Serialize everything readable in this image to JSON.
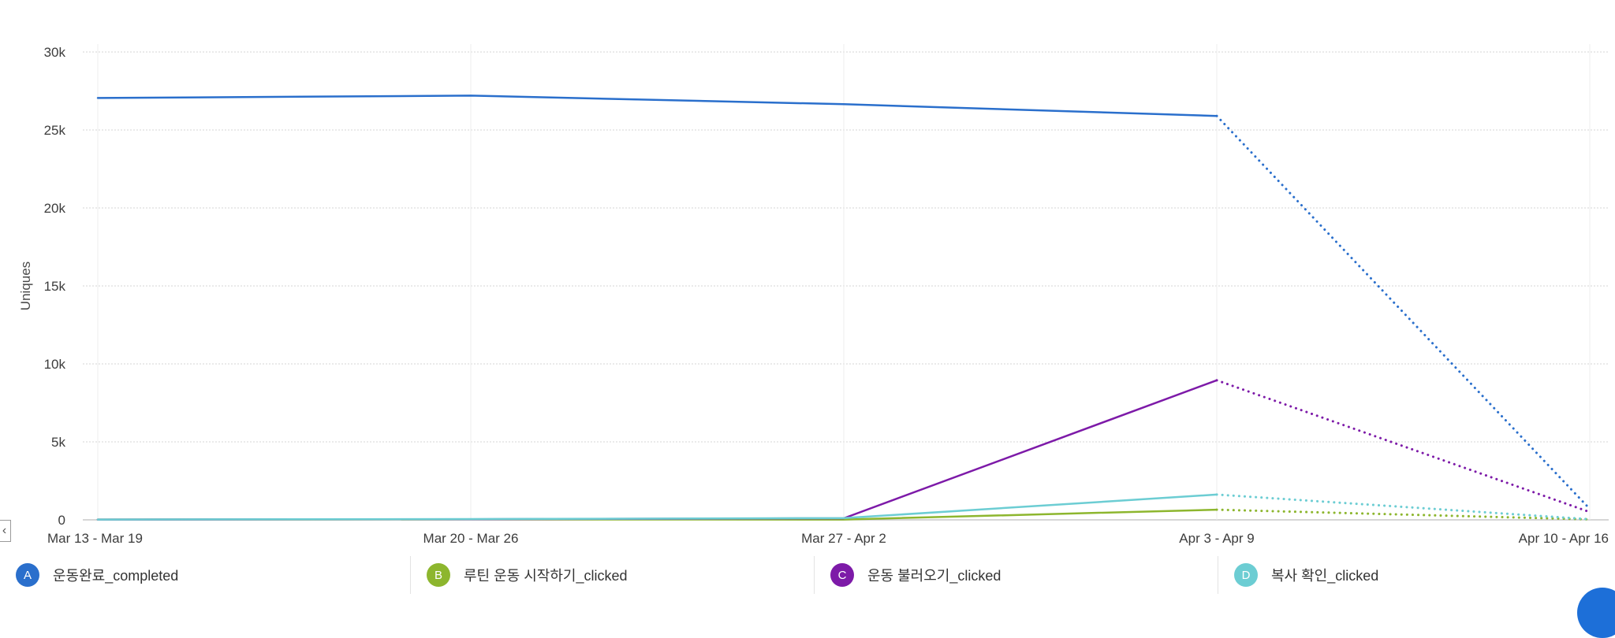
{
  "chart_data": {
    "type": "line",
    "ylabel": "Uniques",
    "xlabel": "",
    "ylim": [
      0,
      30000
    ],
    "y_ticks": [
      0,
      5000,
      10000,
      15000,
      20000,
      25000,
      30000
    ],
    "y_tick_labels": [
      "0",
      "5k",
      "10k",
      "15k",
      "20k",
      "25k",
      "30k"
    ],
    "categories": [
      "Mar 13 - Mar 19",
      "Mar 20 - Mar 26",
      "Mar 27 - Apr 2",
      "Apr 3 - Apr 9",
      "Apr 10 - Apr 16"
    ],
    "incomplete_from_index": 3,
    "grid": true,
    "legend_position": "bottom",
    "series": [
      {
        "letter": "A",
        "name": "운동완료_completed",
        "color": "#2a6fcc",
        "values": [
          27050,
          27200,
          26650,
          25900,
          700
        ]
      },
      {
        "letter": "B",
        "name": "루틴 운동 시작하기_clicked",
        "color": "#8db62e",
        "values": [
          20,
          30,
          20,
          650,
          30
        ]
      },
      {
        "letter": "C",
        "name": "운동 불러오기_clicked",
        "color": "#7d1aa8",
        "values": [
          20,
          40,
          100,
          8950,
          500
        ]
      },
      {
        "letter": "D",
        "name": "복사 확인_clicked",
        "color": "#6ccdd3",
        "values": [
          20,
          50,
          110,
          1620,
          40
        ]
      }
    ]
  }
}
